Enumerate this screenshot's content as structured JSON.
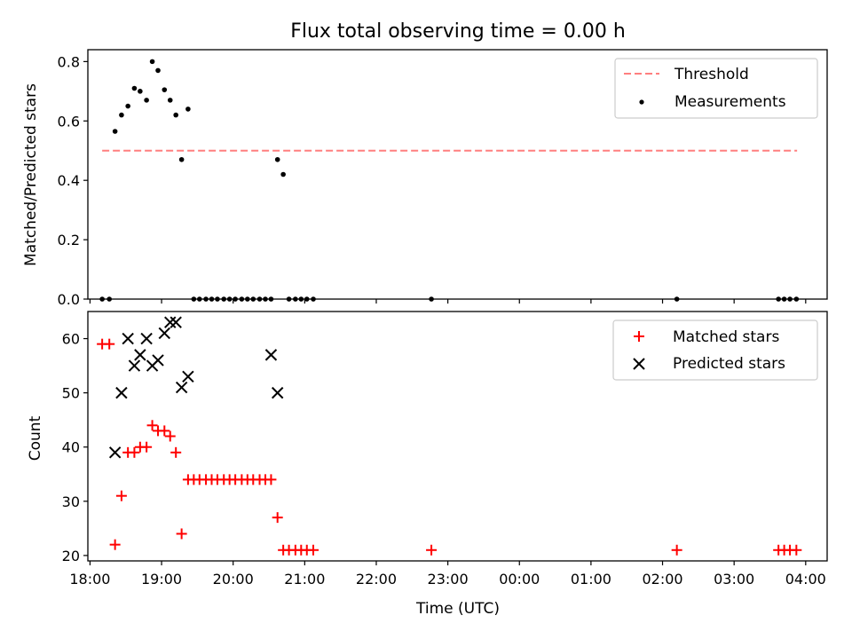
{
  "chart_data": {
    "type": "scatter",
    "title": "Flux total observing time = 0.00 h",
    "xlabel": "Time (UTC)",
    "x_ticks": [
      "18:00",
      "19:00",
      "20:00",
      "21:00",
      "22:00",
      "23:00",
      "00:00",
      "01:00",
      "02:00",
      "03:00",
      "04:00"
    ],
    "x_tick_hours": [
      0,
      1,
      2,
      3,
      4,
      5,
      6,
      7,
      8,
      9,
      10
    ],
    "x_unit_note": "hours after 18:00 UTC",
    "xlim": [
      -0.03,
      10.3
    ],
    "panels": [
      {
        "ylabel": "Matched/Predicted stars",
        "ylim": [
          0.0,
          0.84
        ],
        "yticks": [
          "0.0",
          "0.2",
          "0.4",
          "0.6",
          "0.8"
        ],
        "ytick_values": [
          0.0,
          0.2,
          0.4,
          0.6,
          0.8
        ],
        "legend": {
          "position": "top-right",
          "entries": [
            "Threshold",
            "Measurements"
          ]
        },
        "threshold": {
          "name": "Threshold",
          "value": 0.5,
          "x_range": [
            0.17,
            9.88
          ],
          "color": "#ff7f7f",
          "style": "dashed"
        },
        "measurements": {
          "name": "Measurements",
          "color": "#000000",
          "x": [
            0.17,
            0.27,
            0.35,
            0.44,
            0.53,
            0.62,
            0.7,
            0.79,
            0.87,
            0.95,
            1.04,
            1.12,
            1.2,
            1.28,
            1.37,
            1.45,
            1.53,
            1.62,
            1.7,
            1.78,
            1.87,
            1.95,
            2.03,
            2.12,
            2.2,
            2.28,
            2.37,
            2.45,
            2.53,
            2.62,
            2.7,
            2.78,
            2.87,
            2.95,
            3.03,
            3.12,
            4.77,
            8.2,
            9.62,
            9.7,
            9.78,
            9.87
          ],
          "y": [
            0.0,
            0.0,
            0.565,
            0.62,
            0.65,
            0.71,
            0.7,
            0.67,
            0.8,
            0.77,
            0.705,
            0.67,
            0.62,
            0.47,
            0.64,
            0.0,
            0.0,
            0.0,
            0.0,
            0.0,
            0.0,
            0.0,
            0.0,
            0.0,
            0.0,
            0.0,
            0.0,
            0.0,
            0.0,
            0.47,
            0.42,
            0.0,
            0.0,
            0.0,
            0.0,
            0.0,
            0.0,
            0.0,
            0.0,
            0.0,
            0.0,
            0.0
          ]
        }
      },
      {
        "ylabel": "Count",
        "ylim": [
          19.0,
          65.0
        ],
        "yticks": [
          "20",
          "30",
          "40",
          "50",
          "60"
        ],
        "ytick_values": [
          20,
          30,
          40,
          50,
          60
        ],
        "legend": {
          "position": "top-right",
          "entries": [
            "Matched stars",
            "Predicted stars"
          ]
        },
        "matched": {
          "name": "Matched stars",
          "color": "#ff0000",
          "marker": "plus",
          "x": [
            0.17,
            0.27,
            0.35,
            0.44,
            0.53,
            0.62,
            0.7,
            0.79,
            0.87,
            0.95,
            1.04,
            1.12,
            1.2,
            1.28,
            1.37,
            1.45,
            1.53,
            1.62,
            1.7,
            1.78,
            1.87,
            1.95,
            2.03,
            2.12,
            2.2,
            2.28,
            2.37,
            2.45,
            2.53,
            2.62,
            2.7,
            2.78,
            2.87,
            2.95,
            3.03,
            3.12,
            4.77,
            8.2,
            9.62,
            9.7,
            9.78,
            9.87
          ],
          "y": [
            59,
            59,
            22,
            31,
            39,
            39,
            40,
            40,
            44,
            43,
            43,
            42,
            39,
            24,
            34,
            34,
            34,
            34,
            34,
            34,
            34,
            34,
            34,
            34,
            34,
            34,
            34,
            34,
            34,
            27,
            21,
            21,
            21,
            21,
            21,
            21,
            21,
            21,
            21,
            21,
            21,
            21
          ]
        },
        "predicted": {
          "name": "Predicted stars",
          "color": "#000000",
          "marker": "x",
          "x": [
            0.35,
            0.44,
            0.53,
            0.62,
            0.7,
            0.79,
            0.87,
            0.95,
            1.04,
            1.12,
            1.2,
            1.28,
            1.37,
            2.53,
            2.62
          ],
          "y": [
            39,
            50,
            60,
            55,
            57,
            60,
            55,
            56,
            61,
            63,
            63,
            51,
            53,
            57,
            50
          ]
        }
      }
    ]
  }
}
